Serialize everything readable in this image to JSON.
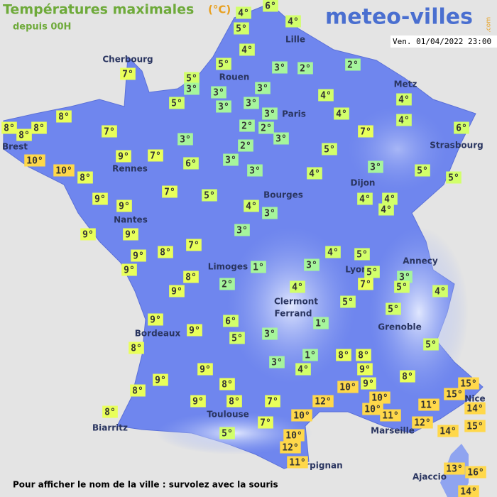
{
  "header": {
    "title": "Températures maximales",
    "unit": "(°C)",
    "subtitle": "depuis 00H",
    "brand": "meteo-villes",
    "brand_suffix": ".com",
    "timestamp": "Ven. 01/04/2022 23:00"
  },
  "cities": [
    "Cherbourg",
    "Lille",
    "Rouen",
    "Metz",
    "Paris",
    "Brest",
    "Strasbourg",
    "Rennes",
    "Dijon",
    "Bourges",
    "Nantes",
    "Annecy",
    "Limoges",
    "Lyon",
    "Clermont",
    "Ferrand",
    "Grenoble",
    "Bordeaux",
    "Nice",
    "Toulouse",
    "Marseille",
    "Biarritz",
    "Perpignan",
    "Ajaccio"
  ],
  "temperatures": [
    "4°",
    "6°",
    "5°",
    "4°",
    "4°",
    "5°",
    "7°",
    "5°",
    "3°",
    "3°",
    "2°",
    "2°",
    "3°",
    "3°",
    "5°",
    "3°",
    "3°",
    "4°",
    "4°",
    "3°",
    "8°",
    "8°",
    "8°",
    "8°",
    "7°",
    "2°",
    "2°",
    "4°",
    "4°",
    "3°",
    "3°",
    "7°",
    "6°",
    "10°",
    "9°",
    "7°",
    "2°",
    "3°",
    "5°",
    "10°",
    "6°",
    "3°",
    "4°",
    "3°",
    "5°",
    "5°",
    "8°",
    "9°",
    "7°",
    "5°",
    "9°",
    "4°",
    "3°",
    "4°",
    "4°",
    "4°",
    "9°",
    "9°",
    "3°",
    "9°",
    "8°",
    "7°",
    "4°",
    "5°",
    "9°",
    "1°",
    "3°",
    "5°",
    "3°",
    "8°",
    "7°",
    "5°",
    "4°",
    "9°",
    "2°",
    "4°",
    "5°",
    "5°",
    "9°",
    "6°",
    "1°",
    "9°",
    "5°",
    "3°",
    "8°",
    "5°",
    "1°",
    "8°",
    "8°",
    "3°",
    "4°",
    "9°",
    "9°",
    "8°",
    "9°",
    "8°",
    "8°",
    "10°",
    "9°",
    "15°",
    "15°",
    "9°",
    "8°",
    "7°",
    "12°",
    "10°",
    "11°",
    "14°",
    "10°",
    "8°",
    "10°",
    "11°",
    "12°",
    "15°",
    "7°",
    "14°",
    "5°",
    "10°",
    "12°",
    "11°",
    "13°",
    "16°",
    "14°"
  ],
  "footer": "Pour afficher le nom de la ville : survolez avec la souris"
}
